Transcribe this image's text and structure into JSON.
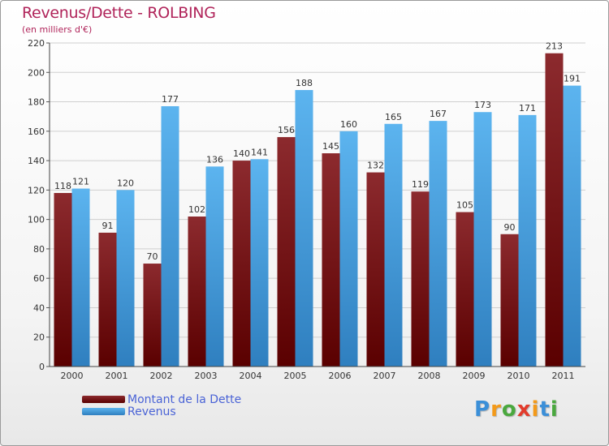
{
  "title": "Revenus/Dette - ROLBING",
  "subtitle": "(en milliers d'€)",
  "colors": {
    "title": "#b0245a",
    "debt": "#7a1a1e",
    "revenue": "#4ea6e6",
    "legend_text": "#4a63d6"
  },
  "chart_data": {
    "type": "bar",
    "categories": [
      "2000",
      "2001",
      "2002",
      "2003",
      "2004",
      "2005",
      "2006",
      "2007",
      "2008",
      "2009",
      "2010",
      "2011"
    ],
    "series": [
      {
        "name": "Montant de la Dette",
        "values": [
          118,
          91,
          70,
          102,
          140,
          156,
          145,
          132,
          119,
          105,
          90,
          213
        ]
      },
      {
        "name": "Revenus",
        "values": [
          121,
          120,
          177,
          136,
          141,
          188,
          160,
          165,
          167,
          173,
          171,
          191
        ]
      }
    ],
    "ylim": [
      0,
      220
    ],
    "yticks": [
      0,
      20,
      40,
      60,
      80,
      100,
      120,
      140,
      160,
      180,
      200,
      220
    ],
    "grid": true,
    "legend_position": "bottom-left"
  },
  "logo": {
    "letters": [
      "P",
      "r",
      "o",
      "x",
      "i",
      "t",
      "i"
    ],
    "colors": [
      "#3b8fd8",
      "#f39a1a",
      "#4aa83e",
      "#e23b2c",
      "#f39a1a",
      "#3b8fd8",
      "#4aa83e"
    ]
  }
}
